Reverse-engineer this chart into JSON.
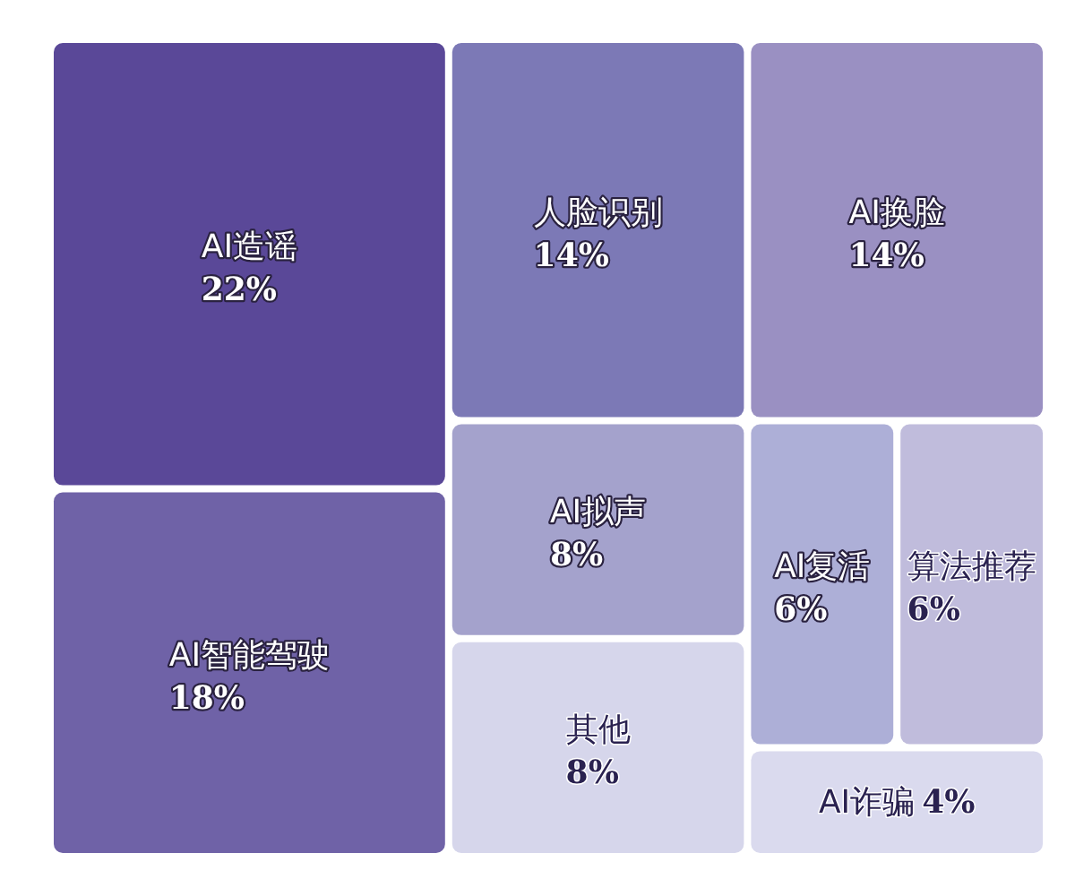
{
  "chart_data": {
    "type": "other",
    "categories": [
      "AI造谣",
      "AI智能驾驶",
      "人脸识别",
      "AI换脸",
      "AI拟声",
      "其他",
      "AI复活",
      "算法推荐",
      "AI诈骗"
    ],
    "values": [
      22,
      18,
      14,
      14,
      8,
      8,
      6,
      6,
      4
    ],
    "value_labels": [
      "22%",
      "18%",
      "14%",
      "14%",
      "8%",
      "8%",
      "6%",
      "6%",
      "4%"
    ],
    "colors": [
      "#5a4898",
      "#6f62a7",
      "#7c79b6",
      "#9a90c2",
      "#a4a2cc",
      "#d6d6eb",
      "#adafd7",
      "#c0bcdc",
      "#dadaee"
    ]
  }
}
